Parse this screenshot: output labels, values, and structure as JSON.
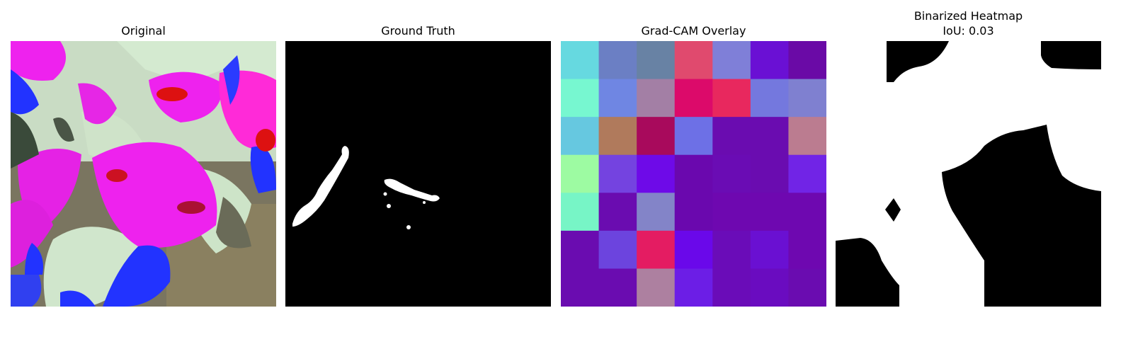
{
  "figure": {
    "panels": [
      {
        "title": "Original"
      },
      {
        "title": "Ground Truth"
      },
      {
        "title": "Grad-CAM Overlay"
      },
      {
        "title": "Binarized Heatmap",
        "subtitle": "IoU: 0.03"
      }
    ]
  },
  "colors": {
    "background": "#ffffff",
    "mask_background": "#000000",
    "mask_foreground": "#ffffff",
    "leaf_magenta": "#ee22ee",
    "leaf_blue": "#2233ff",
    "leaf_pale": "#c8e6c8",
    "leaf_red": "#dd1111",
    "bg_blur": "#6e6a58"
  },
  "gradcam_grid": [
    [
      "#66d9e0",
      "#6b7fc4",
      "#6882a4",
      "#e04a6e",
      "#7f7fd8",
      "#6a10d4",
      "#6a0aa6"
    ],
    [
      "#77f7d0",
      "#6f86e3",
      "#a37fa5",
      "#dc0a6a",
      "#e8285e",
      "#7478de",
      "#7f80d0"
    ],
    [
      "#66c8e0",
      "#b07a5c",
      "#a80a5c",
      "#6d70e6",
      "#6a0cb0",
      "#6a0cb0",
      "#bb7c90"
    ],
    [
      "#9dfba2",
      "#7443e0",
      "#6e0ae8",
      "#6a08ae",
      "#6a0cb4",
      "#6a0cb0",
      "#7124e6"
    ],
    [
      "#77f5c6",
      "#6a0cb0",
      "#8384c8",
      "#6a08ae",
      "#6e08b0",
      "#6e08b0",
      "#6e08b0"
    ],
    [
      "#6a0cb0",
      "#6c44de",
      "#e41c62",
      "#6a08ea",
      "#6a0cb8",
      "#6a10d2",
      "#6e08b0"
    ],
    [
      "#6a0cb0",
      "#6a0cb0",
      "#ad80a0",
      "#6c1ee6",
      "#6a0cb8",
      "#6a0cc0",
      "#6a0cb0"
    ]
  ]
}
